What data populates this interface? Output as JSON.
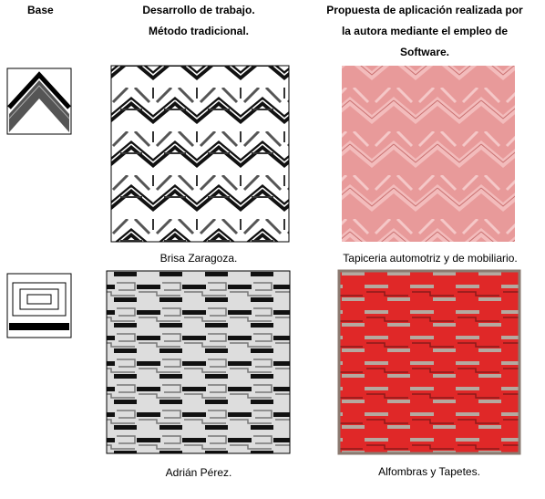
{
  "header": {
    "base": "Base",
    "traditional": [
      "Desarrollo de trabajo.",
      "Método tradicional."
    ],
    "software": [
      "Propuesta de aplicación realizada por",
      "la autora mediante el empleo de",
      "Software."
    ]
  },
  "rows": [
    {
      "traditional_caption": "Brisa Zaragoza.",
      "software_caption": "Tapiceria automotriz y de mobiliario."
    },
    {
      "traditional_caption": "Adrián Pérez.",
      "software_caption": "Alfombras y Tapetes."
    }
  ]
}
